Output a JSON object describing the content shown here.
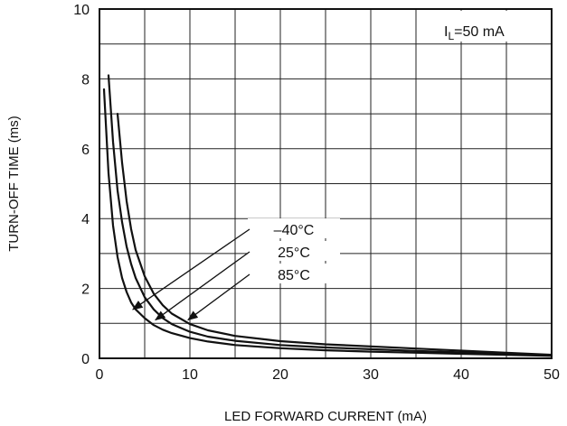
{
  "chart_data": {
    "type": "line",
    "xlabel": "LED FORWARD CURRENT (mA)",
    "ylabel": "TURN-OFF TIME (ms)",
    "xlim": [
      0,
      50
    ],
    "ylim": [
      0,
      10
    ],
    "xticks": [
      0,
      10,
      20,
      30,
      40,
      50
    ],
    "yticks": [
      0,
      2,
      4,
      6,
      8,
      10
    ],
    "x_minor_step": 5,
    "y_minor_step": 1,
    "grid": true,
    "condition": {
      "prefix": "I",
      "subscript": "L",
      "suffix": "=50 mA"
    },
    "series": [
      {
        "name": "–40°C",
        "x": [
          0.5,
          1,
          1.5,
          2,
          2.5,
          3,
          3.5,
          4,
          5,
          6,
          7,
          8,
          10,
          12,
          15,
          20,
          25,
          30,
          35,
          40,
          45,
          50
        ],
        "y": [
          7.7,
          5.3,
          3.8,
          2.9,
          2.3,
          1.9,
          1.6,
          1.4,
          1.15,
          0.95,
          0.82,
          0.72,
          0.58,
          0.48,
          0.38,
          0.29,
          0.23,
          0.19,
          0.16,
          0.13,
          0.1,
          0.07
        ]
      },
      {
        "name": "25°C",
        "x": [
          1,
          1.5,
          2,
          2.5,
          3,
          3.5,
          4,
          5,
          6,
          7,
          8,
          10,
          12,
          15,
          20,
          25,
          30,
          35,
          40,
          45,
          50
        ],
        "y": [
          8.1,
          6.2,
          4.8,
          3.9,
          3.2,
          2.7,
          2.3,
          1.75,
          1.4,
          1.15,
          0.98,
          0.76,
          0.62,
          0.5,
          0.38,
          0.31,
          0.26,
          0.21,
          0.17,
          0.13,
          0.09
        ]
      },
      {
        "name": "85°C",
        "x": [
          2,
          2.5,
          3,
          3.5,
          4,
          5,
          6,
          7,
          8,
          10,
          12,
          15,
          20,
          25,
          30,
          35,
          40,
          45,
          50
        ],
        "y": [
          7.0,
          5.6,
          4.5,
          3.7,
          3.1,
          2.35,
          1.85,
          1.52,
          1.28,
          0.98,
          0.8,
          0.64,
          0.49,
          0.4,
          0.34,
          0.28,
          0.22,
          0.16,
          0.1
        ]
      }
    ],
    "annotations": [
      {
        "text": "–40°C",
        "series": 0,
        "arrow_to": [
          3.7,
          1.4
        ]
      },
      {
        "text": "25°C",
        "series": 1,
        "arrow_to": [
          6.2,
          1.1
        ]
      },
      {
        "text": "85°C",
        "series": 2,
        "arrow_to": [
          9.8,
          1.1
        ]
      }
    ]
  }
}
